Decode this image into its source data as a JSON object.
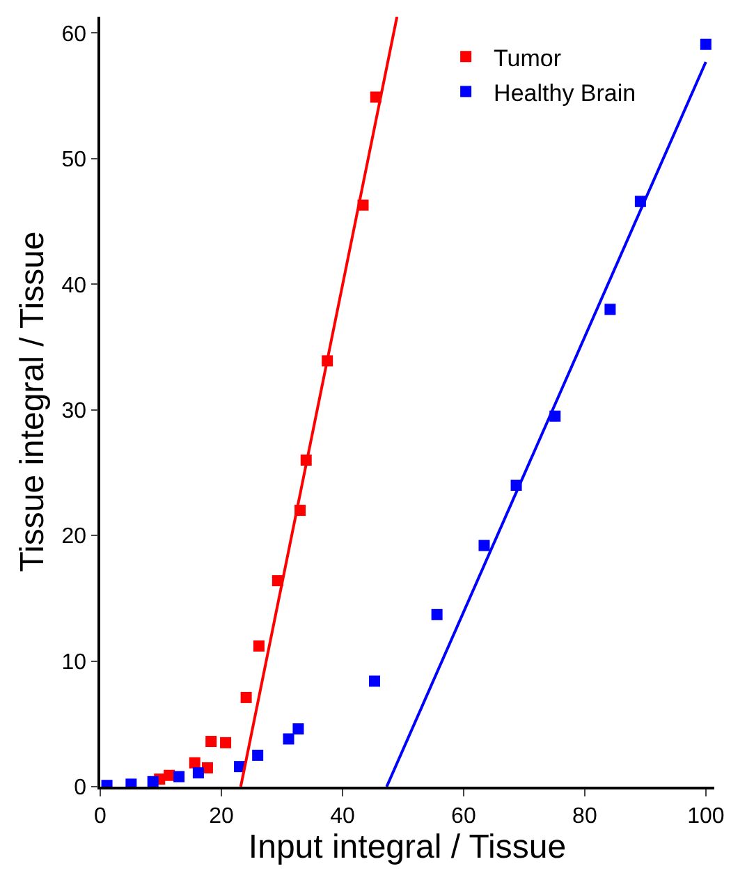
{
  "chart_data": {
    "type": "scatter",
    "xlabel": "Input integral / Tissue",
    "ylabel": "Tissue integral / Tissue",
    "xlim": [
      0,
      101.4
    ],
    "ylim": [
      0,
      61.3
    ],
    "xticks": [
      0,
      20,
      40,
      60,
      80,
      100
    ],
    "yticks": [
      0,
      10,
      20,
      30,
      40,
      50,
      60
    ],
    "grid": false,
    "legend": "top right",
    "series": [
      {
        "name": "Tumor",
        "color": "#ff0000",
        "marker": "square",
        "x": [
          9.8,
          11.4,
          15.6,
          17.7,
          18.3,
          20.7,
          24.1,
          26.2,
          29.3,
          33.0,
          34.0,
          37.5,
          43.4,
          45.5
        ],
        "values": [
          0.6,
          0.9,
          1.9,
          1.5,
          3.6,
          3.5,
          7.1,
          11.2,
          16.4,
          22.0,
          26.0,
          33.9,
          46.3,
          54.9
        ]
      },
      {
        "name": "Healthy Brain",
        "color": "#0000ff",
        "marker": "square",
        "x": [
          1.1,
          5.1,
          8.7,
          13.0,
          16.2,
          23.0,
          26.0,
          31.1,
          32.7,
          45.3,
          55.6,
          63.4,
          68.7,
          75.1,
          84.2,
          89.2,
          100.0
        ],
        "values": [
          0.1,
          0.2,
          0.4,
          0.8,
          1.1,
          1.6,
          2.5,
          3.8,
          4.6,
          8.4,
          13.7,
          19.2,
          24.0,
          29.5,
          38.0,
          46.6,
          59.1
        ]
      },
      {
        "type": "line",
        "color": "#ff0000",
        "marker": "none",
        "x": [
          23.2,
          49.0
        ],
        "values": [
          0,
          61.3
        ]
      },
      {
        "type": "line",
        "color": "#0000ff",
        "marker": "none",
        "x": [
          47.3,
          100.0
        ],
        "values": [
          0,
          57.7
        ]
      }
    ]
  }
}
